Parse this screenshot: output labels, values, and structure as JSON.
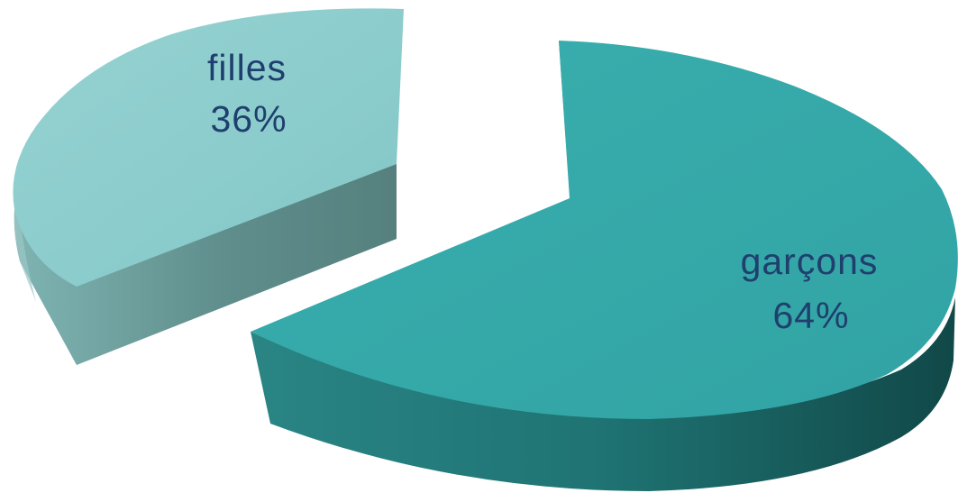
{
  "chart_data": {
    "type": "pie",
    "style": "3d-exploded",
    "slices": [
      {
        "name": "filles",
        "value": 36,
        "value_label": "36%",
        "color": "#8acccc",
        "side_color": "#5f8e8c"
      },
      {
        "name": "garçons",
        "value": 64,
        "value_label": "64%",
        "color": "#35aaab",
        "side_color": "#1d6b6b"
      }
    ],
    "label_color": "#1f3f6e",
    "legend": "none"
  }
}
